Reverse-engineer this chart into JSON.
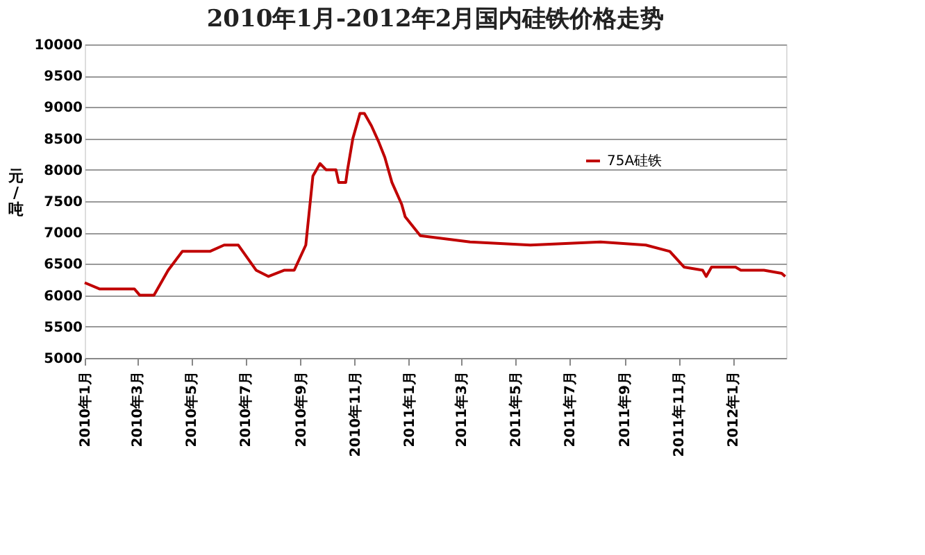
{
  "chart_data": {
    "type": "line",
    "title": "2010年1月-2012年2月国内硅铁价格走势",
    "ylabel": "元/吨",
    "x": [
      "2010-01-01",
      "2010-01-18",
      "2010-02-26",
      "2010-03-04",
      "2010-03-20",
      "2010-04-05",
      "2010-04-21",
      "2010-05-22",
      "2010-06-07",
      "2010-06-23",
      "2010-07-13",
      "2010-07-27",
      "2010-08-14",
      "2010-08-25",
      "2010-09-07",
      "2010-09-15",
      "2010-09-23",
      "2010-09-30",
      "2010-10-11",
      "2010-10-14",
      "2010-10-22",
      "2010-10-24",
      "2010-10-30",
      "2010-11-07",
      "2010-11-12",
      "2010-11-20",
      "2010-11-28",
      "2010-12-05",
      "2010-12-13",
      "2010-12-24",
      "2010-12-28",
      "2011-01-14",
      "2011-03-11",
      "2011-05-18",
      "2011-08-05",
      "2011-09-25",
      "2011-10-22",
      "2011-11-07",
      "2011-11-28",
      "2011-12-02",
      "2011-12-08",
      "2012-01-04",
      "2012-01-10",
      "2012-02-05",
      "2012-02-25",
      "2012-02-29"
    ],
    "series": [
      {
        "name": "75A硅铁",
        "color": "#c00000",
        "values": [
          6200,
          6100,
          6100,
          6000,
          6000,
          6400,
          6700,
          6700,
          6800,
          6800,
          6400,
          6300,
          6400,
          6400,
          6800,
          7900,
          8100,
          8000,
          8000,
          7800,
          7800,
          8000,
          8500,
          8900,
          8900,
          8700,
          8450,
          8200,
          7800,
          7450,
          7250,
          6950,
          6850,
          6800,
          6850,
          6800,
          6700,
          6450,
          6400,
          6300,
          6450,
          6450,
          6400,
          6400,
          6350,
          6300
        ]
      }
    ],
    "xlim": [
      "2010-01-01",
      "2012-03-01"
    ],
    "xticks": [
      {
        "value": "2010-01-01",
        "label": "2010年1月"
      },
      {
        "value": "2010-03-01",
        "label": "2010年3月"
      },
      {
        "value": "2010-05-01",
        "label": "2010年5月"
      },
      {
        "value": "2010-07-01",
        "label": "2010年7月"
      },
      {
        "value": "2010-09-01",
        "label": "2010年9月"
      },
      {
        "value": "2010-11-01",
        "label": "2010年11月"
      },
      {
        "value": "2011-01-01",
        "label": "2011年1月"
      },
      {
        "value": "2011-03-01",
        "label": "2011年3月"
      },
      {
        "value": "2011-05-01",
        "label": "2011年5月"
      },
      {
        "value": "2011-07-01",
        "label": "2011年7月"
      },
      {
        "value": "2011-09-01",
        "label": "2011年9月"
      },
      {
        "value": "2011-11-01",
        "label": "2011年11月"
      },
      {
        "value": "2012-01-01",
        "label": "2012年1月"
      }
    ],
    "ylim": [
      5000,
      10000
    ],
    "yticks": [
      5000,
      5500,
      6000,
      6500,
      7000,
      7500,
      8000,
      8500,
      9000,
      9500,
      10000
    ],
    "grid": "y",
    "legend": "right",
    "marker": "none",
    "line_style": "solid"
  }
}
